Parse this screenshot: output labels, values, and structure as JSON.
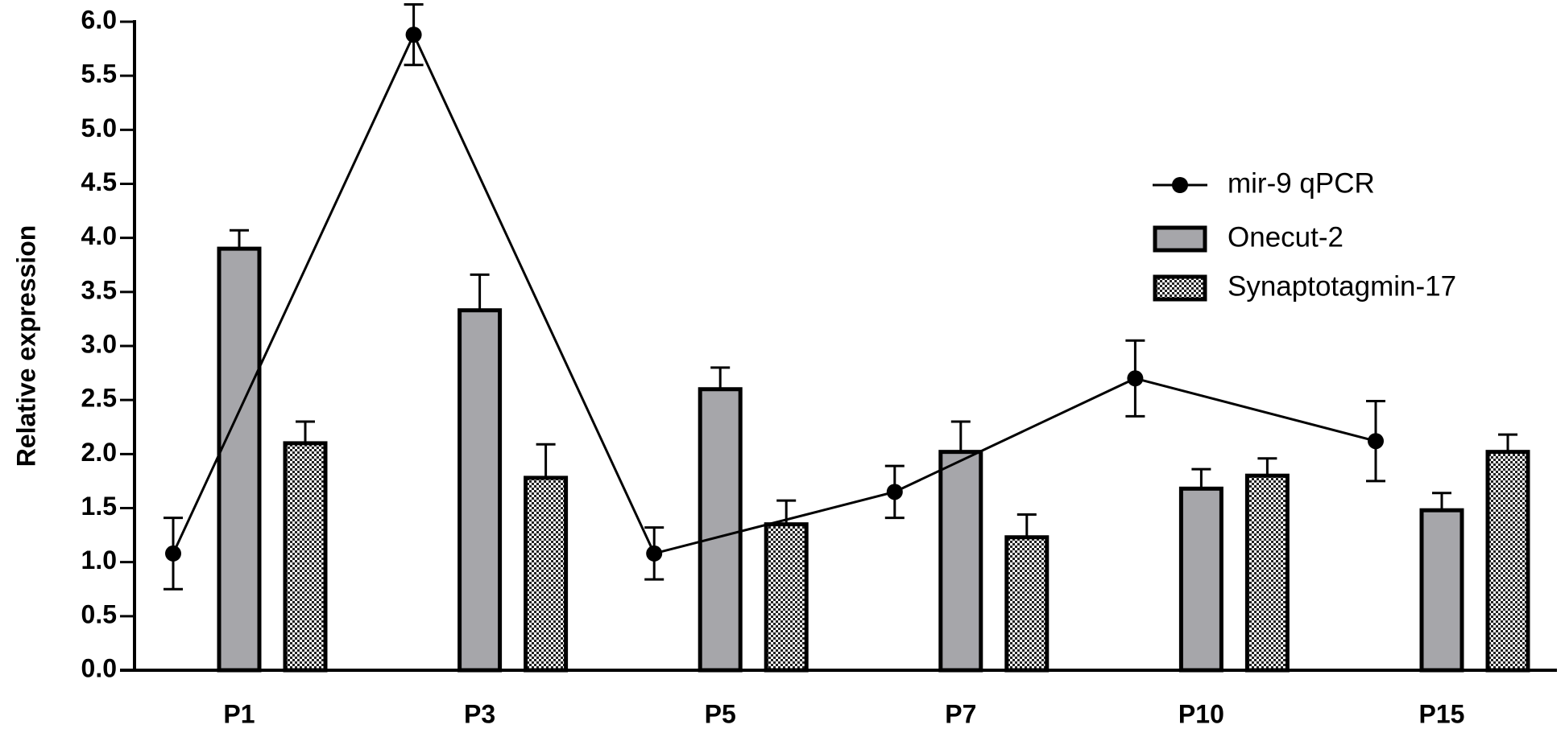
{
  "chart_data": {
    "type": "bar",
    "y_label": "Relative expression",
    "categories": [
      "P1",
      "P3",
      "P5",
      "P7",
      "P10",
      "P15"
    ],
    "series": [
      {
        "name": "mir-9 qPCR",
        "type": "line",
        "color": "#000000",
        "values": [
          1.08,
          5.88,
          1.08,
          1.65,
          2.7,
          2.12
        ],
        "errors": [
          0.33,
          0.28,
          0.24,
          0.24,
          0.35,
          0.37
        ]
      },
      {
        "name": "Onecut-2",
        "type": "bar",
        "color": "#a6a6aa",
        "values": [
          3.9,
          3.33,
          2.6,
          2.02,
          1.68,
          1.48
        ],
        "errors": [
          0.17,
          0.33,
          0.2,
          0.28,
          0.18,
          0.16
        ]
      },
      {
        "name": "Synaptotagmin-17",
        "type": "bar",
        "color": "#000000",
        "pattern": "checkered",
        "values": [
          2.1,
          1.78,
          1.35,
          1.23,
          1.8,
          2.02
        ],
        "errors": [
          0.2,
          0.31,
          0.22,
          0.21,
          0.16,
          0.16
        ]
      }
    ],
    "ylim": [
      0,
      6
    ],
    "yticks": [
      {
        "value": 0,
        "label": "0.0"
      },
      0.5,
      {
        "value": 1,
        "label": "1.0"
      },
      1.5,
      {
        "value": 2,
        "label": "2.0"
      },
      2.5,
      {
        "value": 3,
        "label": "3.0"
      },
      3.5,
      {
        "value": 4,
        "label": "4.0"
      },
      4.5,
      {
        "value": 5,
        "label": "5.0"
      },
      5.5,
      {
        "value": 6,
        "label": "6.0"
      }
    ],
    "legend": "upper right"
  }
}
